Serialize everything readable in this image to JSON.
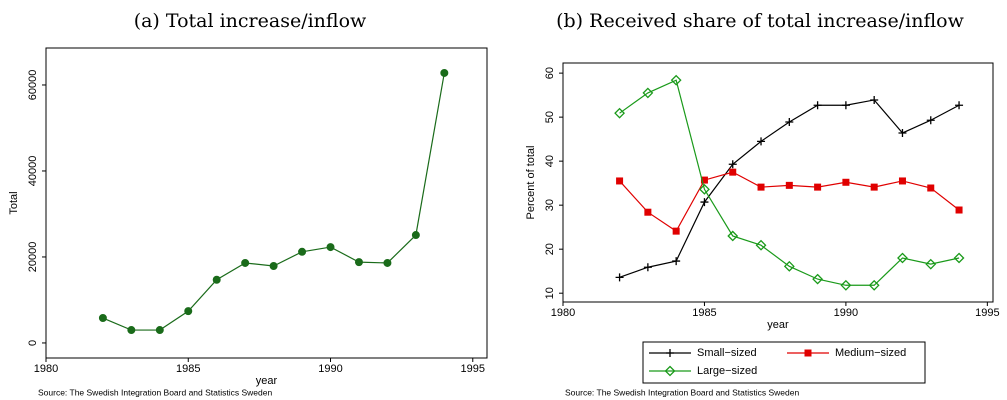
{
  "chart_data": [
    {
      "type": "line",
      "title": "(a) Total increase/inflow",
      "xlabel": "year",
      "ylabel": "Total",
      "source": "Source: The Swedish Integration Board and Statistics Sweden",
      "x": [
        1982,
        1983,
        1984,
        1985,
        1986,
        1987,
        1988,
        1989,
        1990,
        1991,
        1992,
        1993,
        1994
      ],
      "values": [
        5800,
        3000,
        3000,
        7400,
        14700,
        18600,
        17900,
        21200,
        22300,
        18800,
        18600,
        25100,
        62800
      ],
      "color": "#1a6b1a",
      "marker": "circle",
      "xlim": [
        1980,
        1995.5
      ],
      "xticks": [
        1980,
        1985,
        1990,
        1995
      ],
      "ylim": [
        -3500,
        68600
      ],
      "yticks": [
        0,
        20000,
        40000,
        60000
      ]
    },
    {
      "type": "line",
      "title": "(b) Received share of total increase/inflow",
      "xlabel": "year",
      "ylabel": "Percent of total",
      "source": "Source: The Swedish Integration Board and Statistics Sweden",
      "x": [
        1982,
        1983,
        1984,
        1985,
        1986,
        1987,
        1988,
        1989,
        1990,
        1991,
        1992,
        1993,
        1994
      ],
      "series": [
        {
          "name": "Small−sized",
          "color": "#000000",
          "marker": "plus",
          "values": [
            13.6,
            15.9,
            17.3,
            30.7,
            39.3,
            44.5,
            48.9,
            52.7,
            52.7,
            53.9,
            46.4,
            49.3,
            52.7
          ]
        },
        {
          "name": "Medium−sized",
          "color": "#e00000",
          "marker": "square",
          "values": [
            35.5,
            28.4,
            24.1,
            35.7,
            37.5,
            34.1,
            34.5,
            34.1,
            35.2,
            34.1,
            35.5,
            33.9,
            28.9
          ]
        },
        {
          "name": "Large−sized",
          "color": "#1a9a1a",
          "marker": "diamond",
          "values": [
            50.9,
            55.5,
            58.4,
            33.6,
            23.0,
            20.9,
            16.1,
            13.2,
            11.8,
            11.8,
            18.0,
            16.6,
            18.0
          ]
        }
      ],
      "legend": "bottom",
      "xlim": [
        1980,
        1995.2
      ],
      "xticks": [
        1980,
        1985,
        1990,
        1995
      ],
      "ylim": [
        8,
        62.3
      ],
      "yticks": [
        10,
        20,
        30,
        40,
        50,
        60
      ]
    }
  ]
}
